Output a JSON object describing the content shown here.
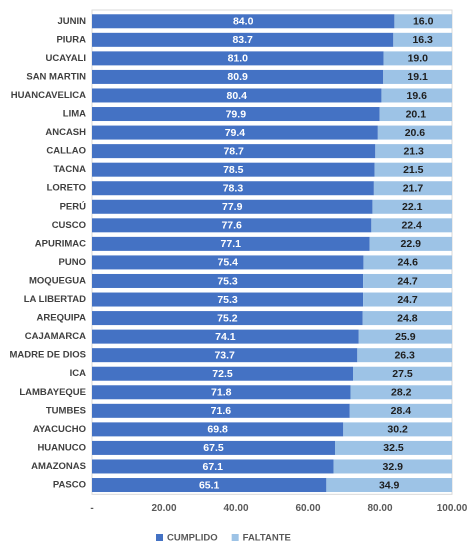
{
  "chart_data": {
    "type": "stacked-barh",
    "categories": [
      "JUNIN",
      "PIURA",
      "UCAYALI",
      "SAN MARTIN",
      "HUANCAVELICA",
      "LIMA",
      "ANCASH",
      "CALLAO",
      "TACNA",
      "LORETO",
      "PERÚ",
      "CUSCO",
      "APURIMAC",
      "PUNO",
      "MOQUEGUA",
      "LA LIBERTAD",
      "AREQUIPA",
      "CAJAMARCA",
      "MADRE DE DIOS",
      "ICA",
      "LAMBAYEQUE",
      "TUMBES",
      "AYACUCHO",
      "HUANUCO",
      "AMAZONAS",
      "PASCO"
    ],
    "series": [
      {
        "name": "CUMPLIDO",
        "color": "#4472c4",
        "values": [
          84.0,
          83.7,
          81.0,
          80.9,
          80.4,
          79.9,
          79.4,
          78.7,
          78.5,
          78.3,
          77.9,
          77.6,
          77.1,
          75.4,
          75.3,
          75.3,
          75.2,
          74.1,
          73.7,
          72.5,
          71.8,
          71.6,
          69.8,
          67.5,
          67.1,
          65.1
        ],
        "value_labels": [
          "84.0",
          "83.7",
          "81.0",
          "80.9",
          "80.4",
          "79.9",
          "79.4",
          "78.7",
          "78.5",
          "78.3",
          "77.9",
          "77.6",
          "77.1",
          "75.4",
          "75.3",
          "75.3",
          "75.2",
          "74.1",
          "73.7",
          "72.5",
          "71.8",
          "71.6",
          "69.8",
          "67.5",
          "67.1",
          "65.1"
        ]
      },
      {
        "name": "FALTANTE",
        "color": "#9dc3e6",
        "values": [
          16.0,
          16.3,
          19.0,
          19.1,
          19.6,
          20.1,
          20.6,
          21.3,
          21.5,
          21.7,
          22.1,
          22.4,
          22.9,
          24.6,
          24.7,
          24.7,
          24.8,
          25.9,
          26.3,
          27.5,
          28.2,
          28.4,
          30.2,
          32.5,
          32.9,
          34.9
        ],
        "value_labels": [
          "16.0",
          "16.3",
          "19.0",
          "19.1",
          "19.6",
          "20.1",
          "20.6",
          "21.3",
          "21.5",
          "21.7",
          "22.1",
          "22.4",
          "22.9",
          "24.6",
          "24.7",
          "24.7",
          "24.8",
          "25.9",
          "26.3",
          "27.5",
          "28.2",
          "28.4",
          "30.2",
          "32.5",
          "32.9",
          "34.9"
        ]
      }
    ],
    "xlim": [
      0,
      100
    ],
    "xticks": [
      {
        "value": 0,
        "label": "-"
      },
      {
        "value": 20,
        "label": "20.00"
      },
      {
        "value": 40,
        "label": "40.00"
      },
      {
        "value": 60,
        "label": "60.00"
      },
      {
        "value": 80,
        "label": "80.00"
      },
      {
        "value": 100,
        "label": "100.00"
      }
    ],
    "legend": "bottom"
  }
}
